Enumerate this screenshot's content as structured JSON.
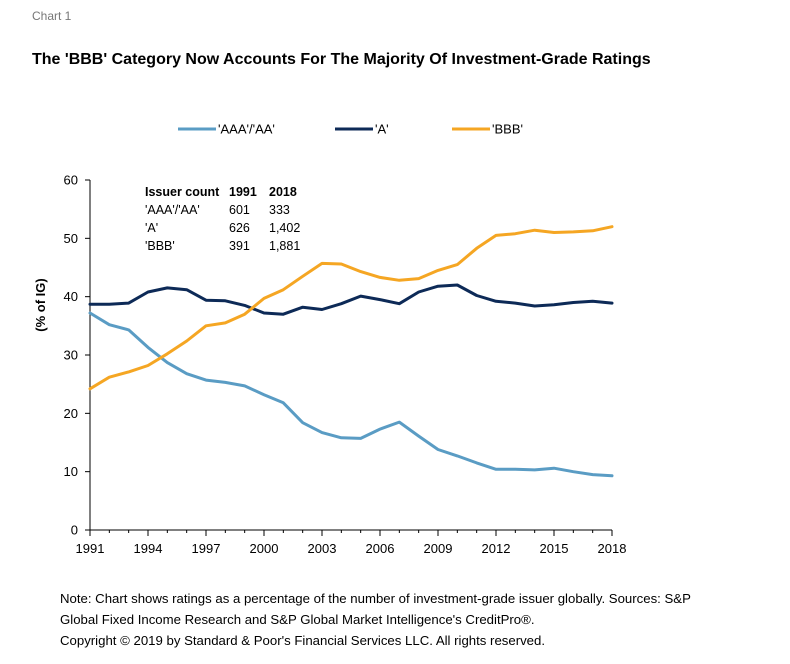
{
  "header": {
    "chart_label": "Chart 1",
    "title": "The 'BBB' Category Now Accounts For The Majority Of Investment-Grade Ratings"
  },
  "chart_data": {
    "type": "line",
    "xlabel": "",
    "ylabel": "(% of IG)",
    "ylim": [
      0,
      60
    ],
    "yticks": [
      0,
      10,
      20,
      30,
      40,
      50,
      60
    ],
    "xticks": [
      1991,
      1994,
      1997,
      2000,
      2003,
      2006,
      2009,
      2012,
      2015,
      2018
    ],
    "xlim": [
      1991,
      2018
    ],
    "grid": false,
    "legend_position": "top",
    "x": [
      1991,
      1992,
      1993,
      1994,
      1995,
      1996,
      1997,
      1998,
      1999,
      2000,
      2001,
      2002,
      2003,
      2004,
      2005,
      2006,
      2007,
      2008,
      2009,
      2010,
      2011,
      2012,
      2013,
      2014,
      2015,
      2016,
      2017,
      2018
    ],
    "series": [
      {
        "name": "'AAA'/'AA'",
        "color": "#5a9cc4",
        "values": [
          37.2,
          35.2,
          34.3,
          31.3,
          28.7,
          26.8,
          25.7,
          25.3,
          24.7,
          23.2,
          21.8,
          18.4,
          16.7,
          15.8,
          15.7,
          17.3,
          18.5,
          16.1,
          13.8,
          12.7,
          11.5,
          10.4,
          10.4,
          10.3,
          10.6,
          10.0,
          9.5,
          9.3
        ]
      },
      {
        "name": "'A'",
        "color": "#0d2a57",
        "values": [
          38.7,
          38.7,
          38.9,
          40.8,
          41.5,
          41.2,
          39.4,
          39.3,
          38.5,
          37.2,
          37.0,
          38.2,
          37.8,
          38.8,
          40.1,
          39.5,
          38.8,
          40.8,
          41.8,
          42.0,
          40.2,
          39.2,
          38.9,
          38.4,
          38.6,
          39.0,
          39.2,
          38.9
        ]
      },
      {
        "name": "'BBB'",
        "color": "#f5a623",
        "values": [
          24.2,
          26.2,
          27.1,
          28.2,
          30.2,
          32.4,
          35.0,
          35.5,
          37.0,
          39.7,
          41.2,
          43.5,
          45.7,
          45.6,
          44.3,
          43.3,
          42.8,
          43.1,
          44.5,
          45.5,
          48.3,
          50.5,
          50.8,
          51.4,
          51.0,
          51.1,
          51.3,
          52.0
        ]
      }
    ],
    "annotation_table": {
      "headers": [
        "Issuer count",
        "1991",
        "2018"
      ],
      "rows": [
        [
          "'AAA'/'AA'",
          "601",
          "333"
        ],
        [
          "'A'",
          "626",
          "1,402"
        ],
        [
          "'BBB'",
          "391",
          "1,881"
        ]
      ]
    }
  },
  "footer": {
    "note_line1": "Note: Chart shows ratings as a percentage of the number of investment-grade issuer globally. Sources: S&P",
    "note_line2": "Global Fixed Income Research and S&P Global Market Intelligence's CreditPro®.",
    "copyright": "Copyright © 2019 by Standard & Poor's Financial Services LLC. All rights reserved."
  }
}
